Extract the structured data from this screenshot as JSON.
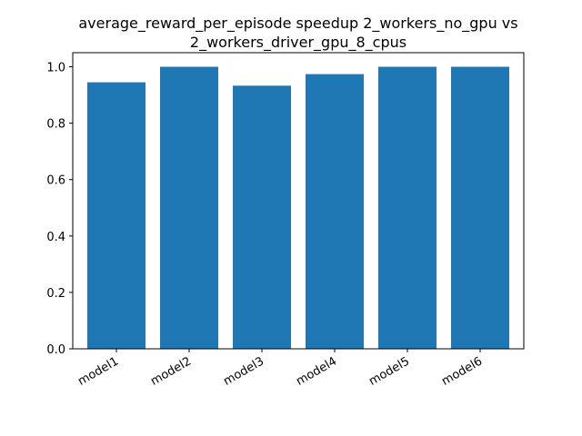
{
  "chart_data": {
    "type": "bar",
    "title_lines": [
      "average_reward_per_episode speedup 2_workers_no_gpu vs",
      "2_workers_driver_gpu_8_cpus"
    ],
    "xlabel": "",
    "ylabel": "",
    "categories": [
      "model1",
      "model2",
      "model3",
      "model4",
      "model5",
      "model6"
    ],
    "values": [
      0.945,
      1.0,
      0.933,
      0.974,
      1.0,
      1.0
    ],
    "ylim": [
      0,
      1.05
    ],
    "yticks": [
      0.0,
      0.2,
      0.4,
      0.6,
      0.8,
      1.0
    ],
    "ytick_labels": [
      "0.0",
      "0.2",
      "0.4",
      "0.6",
      "0.8",
      "1.0"
    ],
    "bar_color": "#1f77b4",
    "grid": false,
    "legend": "none"
  }
}
